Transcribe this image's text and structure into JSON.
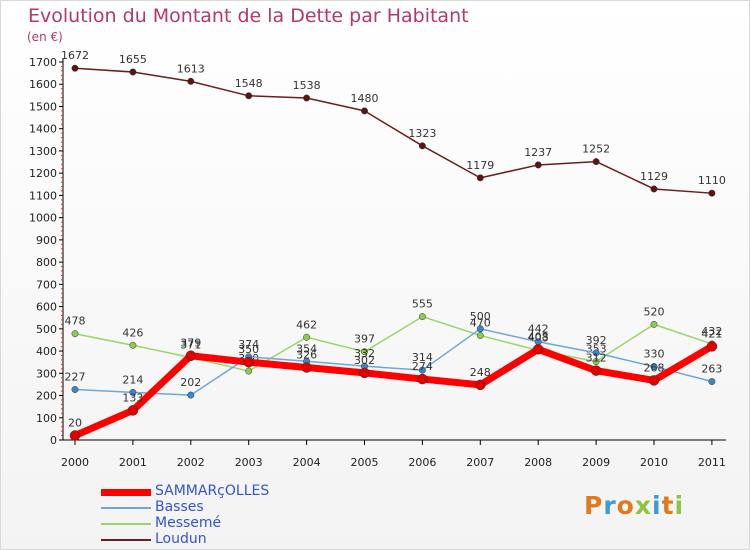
{
  "title": "Evolution du Montant de la Dette par Habitant",
  "subtitle": "(en €)",
  "logo": {
    "text": "Proxiti"
  },
  "chart_data": {
    "type": "line",
    "title": "Evolution du Montant de la Dette par Habitant",
    "subtitle": "(en €)",
    "xlabel": "",
    "ylabel": "",
    "x": [
      "2000",
      "2001",
      "2002",
      "2003",
      "2004",
      "2005",
      "2006",
      "2007",
      "2008",
      "2009",
      "2010",
      "2011"
    ],
    "ylim": [
      0,
      1700
    ],
    "yticks": [
      0,
      100,
      200,
      300,
      400,
      500,
      600,
      700,
      800,
      900,
      1000,
      1100,
      1200,
      1300,
      1400,
      1500,
      1600,
      1700
    ],
    "grid": false,
    "legend_position": "bottom-left",
    "series": [
      {
        "name": "Loudun",
        "color": "#6b1e1e",
        "values": [
          1672,
          1655,
          1613,
          1548,
          1538,
          1480,
          1323,
          1179,
          1237,
          1252,
          1129,
          1110
        ]
      },
      {
        "name": "Messemé",
        "color": "#9cd46a",
        "values": [
          478,
          426,
          371,
          310,
          462,
          397,
          555,
          470,
          403,
          353,
          520,
          432
        ]
      },
      {
        "name": "Basses",
        "color": "#6fa6d6",
        "values": [
          227,
          214,
          202,
          374,
          354,
          332,
          314,
          500,
          442,
          392,
          330,
          263
        ]
      },
      {
        "name": "SAMMARçOLLES",
        "color": "#ff0000",
        "values": [
          20,
          133,
          379,
          350,
          326,
          302,
          274,
          248,
          408,
          312,
          268,
          421
        ]
      }
    ]
  }
}
